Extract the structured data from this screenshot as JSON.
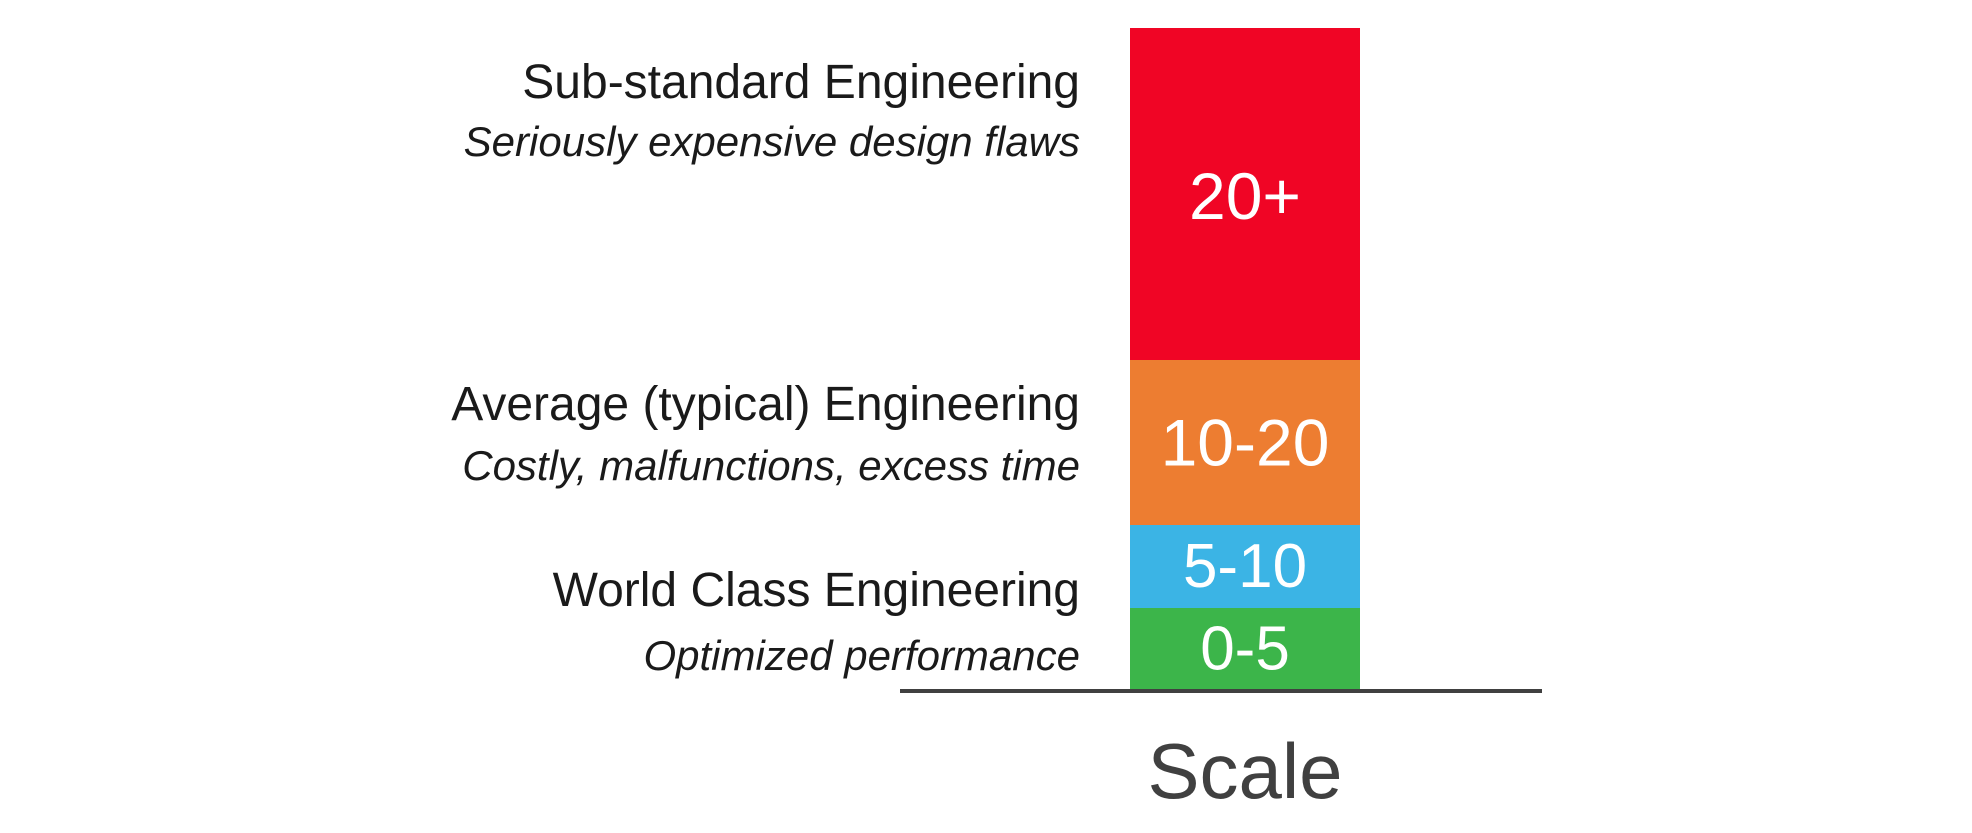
{
  "chart_data": {
    "type": "bar",
    "stacked": true,
    "xlabel": "Scale",
    "ylabel": "",
    "title": "",
    "grid": false,
    "legend": "none",
    "categories": [
      "Scale"
    ],
    "series": [
      {
        "label": "0-5",
        "range": [
          0,
          5
        ],
        "color": "#3cb54a"
      },
      {
        "label": "5-10",
        "range": [
          5,
          10
        ],
        "color": "#3bb4e5"
      },
      {
        "label": "10-20",
        "range": [
          10,
          20
        ],
        "color": "#ed7d31"
      },
      {
        "label": "20+",
        "range": [
          20,
          40
        ],
        "color": "#f00525"
      }
    ],
    "annotations": [
      {
        "title": "Sub-standard Engineering",
        "subtitle": "Seriously expensive design flaws",
        "anchor_value": 33
      },
      {
        "title": "Average (typical) Engineering",
        "subtitle": "Costly, malfunctions, excess time",
        "anchor_value": 13.5
      },
      {
        "title": "World Class Engineering",
        "subtitle": "Optimized performance",
        "anchor_value": 4.2
      }
    ],
    "colors": {
      "annotation_text": "#1a1a1a",
      "axis_label": "#404040",
      "baseline": "#404040",
      "bar_label": "#ffffff"
    }
  }
}
